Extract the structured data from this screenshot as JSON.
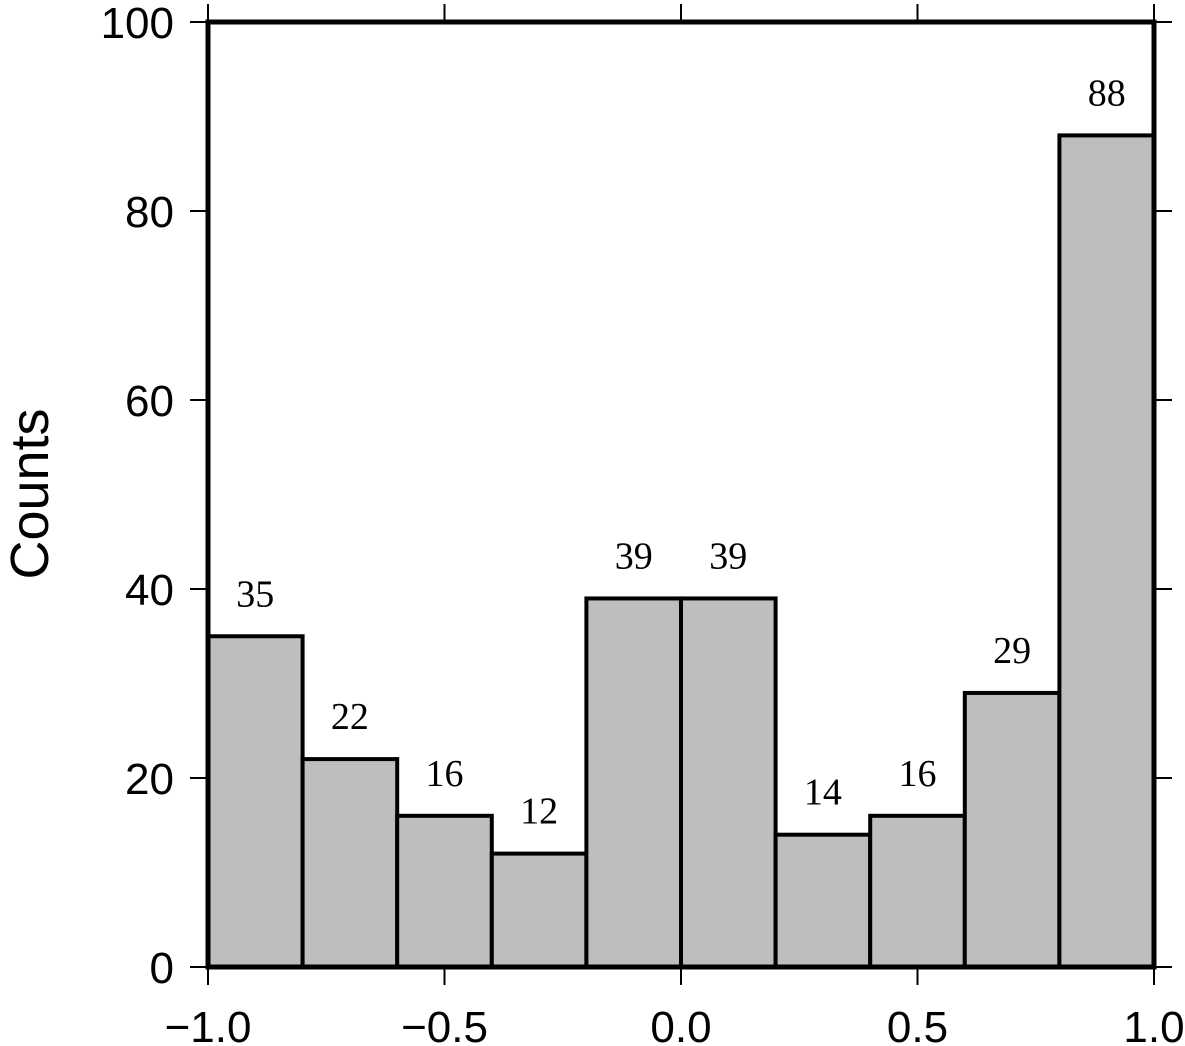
{
  "chart_data": {
    "type": "bar",
    "title": "",
    "xlabel": "",
    "ylabel": "Counts",
    "xlim": [
      -1.0,
      1.0
    ],
    "ylim": [
      0,
      100
    ],
    "bin_edges": [
      -1.0,
      -0.8,
      -0.6,
      -0.4,
      -0.2,
      0.0,
      0.2,
      0.4,
      0.6,
      0.8,
      1.0
    ],
    "values": [
      35,
      22,
      16,
      12,
      39,
      39,
      14,
      16,
      29,
      88
    ],
    "data_labels": [
      "35",
      "22",
      "16",
      "12",
      "39",
      "39",
      "14",
      "16",
      "29",
      "88"
    ],
    "x_ticks": [
      -1.0,
      -0.5,
      0.0,
      0.5,
      1.0
    ],
    "x_tick_labels": [
      "−1.0",
      "−0.5",
      "0.0",
      "0.5",
      "1.0"
    ],
    "y_ticks": [
      0,
      20,
      40,
      60,
      80,
      100
    ],
    "y_tick_labels": [
      "0",
      "20",
      "40",
      "60",
      "80",
      "100"
    ],
    "grid": false,
    "bar_color": "#bebebe",
    "edge_color": "#000000"
  }
}
